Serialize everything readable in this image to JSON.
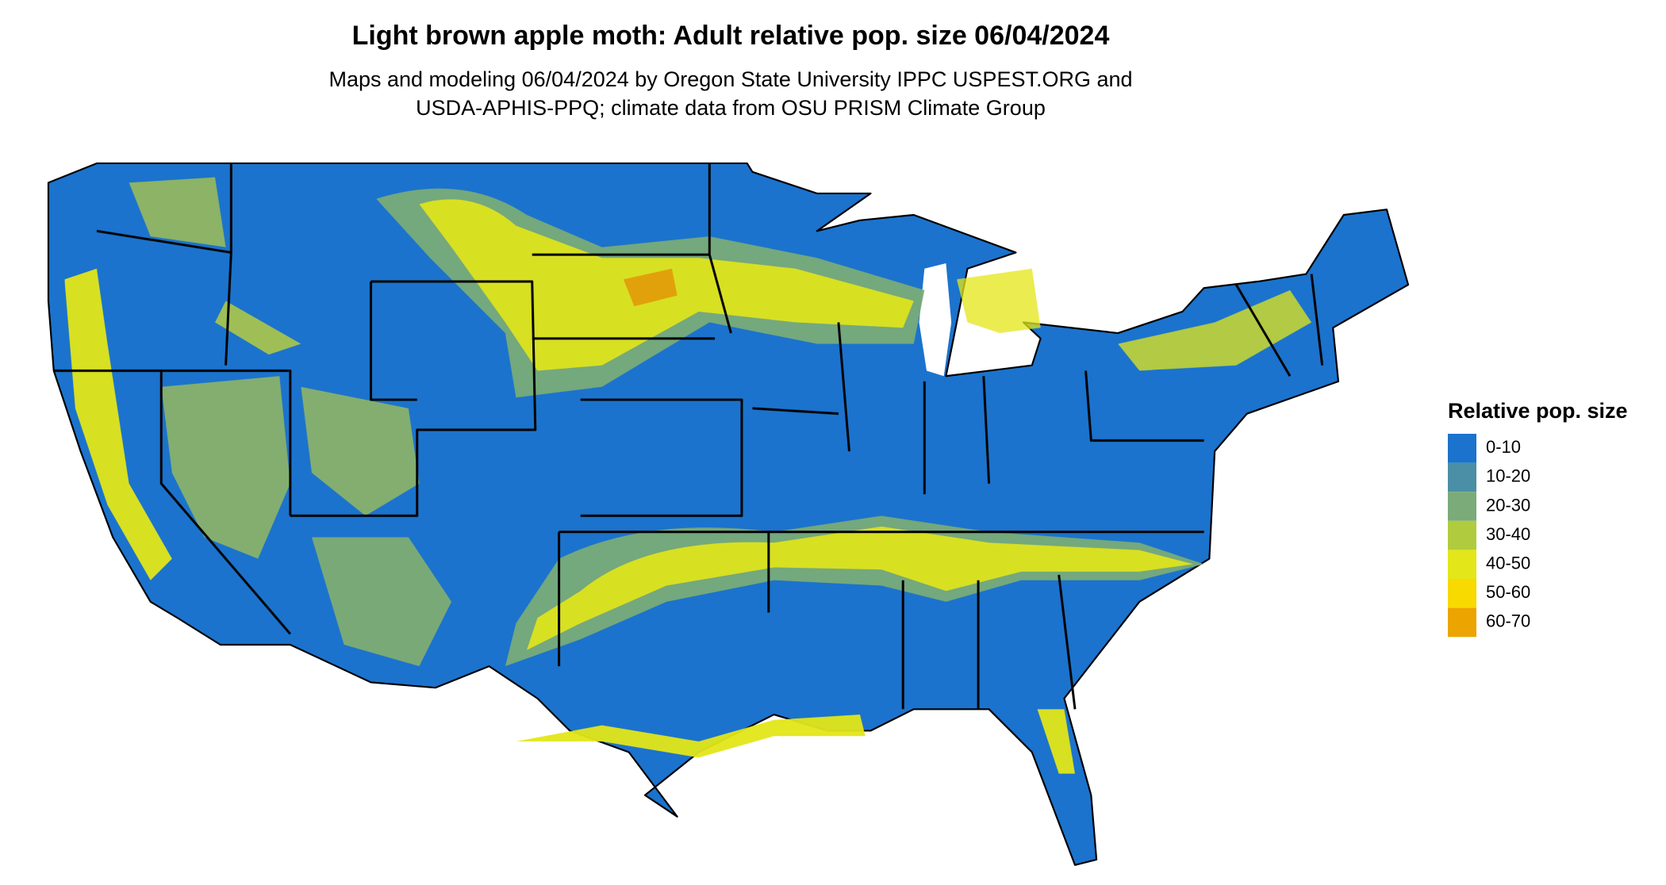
{
  "title": "Light brown apple moth: Adult relative pop. size 06/04/2024",
  "subtitle": [
    "Maps and modeling 06/04/2024 by Oregon State University IPPC USPEST.ORG and",
    "USDA-APHIS-PPQ; climate data from OSU PRISM Climate Group"
  ],
  "legend": {
    "title": "Relative pop. size",
    "items": [
      {
        "label": "0-10",
        "color": "#1b73cd"
      },
      {
        "label": "10-20",
        "color": "#4a8fa5"
      },
      {
        "label": "20-30",
        "color": "#7aab79"
      },
      {
        "label": "30-40",
        "color": "#b0cc3e"
      },
      {
        "label": "40-50",
        "color": "#e3e619"
      },
      {
        "label": "50-60",
        "color": "#f8d900"
      },
      {
        "label": "60-70",
        "color": "#eca400"
      }
    ]
  }
}
